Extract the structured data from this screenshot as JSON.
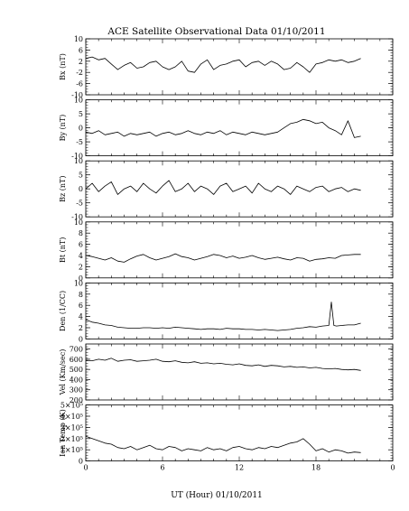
{
  "chart_data": {
    "type": "line",
    "title": "ACE Satellite Observational Data   01/10/2011",
    "xlabel": "UT (Hour)   01/10/2011",
    "x_ticks": [
      "0",
      "6",
      "12",
      "18",
      "0"
    ],
    "x_range": [
      0,
      24
    ],
    "data_end_hour": 21.5,
    "panels": [
      {
        "ylabel": "Bx (nT)",
        "ylim": [
          -10,
          10
        ],
        "yticks": [
          "10",
          "6",
          "2",
          "-2",
          "-6",
          "-10"
        ],
        "ytick_values": [
          10,
          6,
          2,
          -2,
          -6,
          -10
        ],
        "x": [
          0,
          0.5,
          1,
          1.5,
          2,
          2.5,
          3,
          3.5,
          4,
          4.5,
          5,
          5.5,
          6,
          6.5,
          7,
          7.5,
          8,
          8.5,
          9,
          9.5,
          10,
          10.5,
          11,
          11.5,
          12,
          12.5,
          13,
          13.5,
          14,
          14.5,
          15,
          15.5,
          16,
          16.5,
          17,
          17.5,
          18,
          18.5,
          19,
          19.5,
          20,
          20.5,
          21,
          21.5
        ],
        "values": [
          3,
          3.5,
          2.5,
          3,
          1,
          -1,
          0.5,
          1.5,
          -0.5,
          0,
          1.5,
          2,
          0,
          -1,
          0,
          2,
          -1.5,
          -2,
          1,
          2.5,
          -1,
          0.5,
          1,
          2,
          2.5,
          0,
          1.5,
          2,
          0.5,
          2,
          1,
          -1,
          -0.5,
          1.5,
          0,
          -2,
          1,
          1.5,
          2.5,
          2,
          2.5,
          1.5,
          2,
          3
        ]
      },
      {
        "ylabel": "By (nT)",
        "ylim": [
          -10,
          10
        ],
        "yticks": [
          "10",
          "5",
          "0",
          "-5",
          "-10"
        ],
        "ytick_values": [
          10,
          5,
          0,
          -5,
          -10
        ],
        "x": [
          0,
          0.5,
          1,
          1.5,
          2,
          2.5,
          3,
          3.5,
          4,
          4.5,
          5,
          5.5,
          6,
          6.5,
          7,
          7.5,
          8,
          8.5,
          9,
          9.5,
          10,
          10.5,
          11,
          11.5,
          12,
          12.5,
          13,
          13.5,
          14,
          14.5,
          15,
          15.5,
          16,
          16.5,
          17,
          17.5,
          18,
          18.5,
          19,
          19.5,
          20,
          20.5,
          21,
          21.5
        ],
        "values": [
          -1.5,
          -2,
          -1,
          -2.5,
          -2,
          -1.5,
          -3,
          -2,
          -2.5,
          -2,
          -1.5,
          -3,
          -2,
          -1.5,
          -2.5,
          -2,
          -1,
          -2,
          -2.5,
          -1.5,
          -2,
          -1,
          -2.5,
          -1.5,
          -2,
          -2.5,
          -1.5,
          -2,
          -2.5,
          -2,
          -1.5,
          0,
          1.5,
          2,
          3,
          2.5,
          1.5,
          2,
          0,
          -1,
          -2.5,
          2.5,
          -3.5,
          -3
        ]
      },
      {
        "ylabel": "Bz (nT)",
        "ylim": [
          -10,
          10
        ],
        "yticks": [
          "10",
          "5",
          "0",
          "-5",
          "-10"
        ],
        "ytick_values": [
          10,
          5,
          0,
          -5,
          -10
        ],
        "x": [
          0,
          0.5,
          1,
          1.5,
          2,
          2.5,
          3,
          3.5,
          4,
          4.5,
          5,
          5.5,
          6,
          6.5,
          7,
          7.5,
          8,
          8.5,
          9,
          9.5,
          10,
          10.5,
          11,
          11.5,
          12,
          12.5,
          13,
          13.5,
          14,
          14.5,
          15,
          15.5,
          16,
          16.5,
          17,
          17.5,
          18,
          18.5,
          19,
          19.5,
          20,
          20.5,
          21,
          21.5
        ],
        "values": [
          0,
          2,
          -1,
          1,
          2.5,
          -2,
          0,
          1,
          -1,
          2,
          0,
          -1.5,
          1,
          3,
          -1,
          0,
          2,
          -1,
          1,
          0,
          -2,
          1,
          2,
          -1,
          0,
          1,
          -1.5,
          2,
          0,
          -1,
          1,
          0,
          -2,
          1,
          0,
          -1,
          0.5,
          1,
          -1,
          0,
          0.5,
          -1,
          0,
          -0.5
        ]
      },
      {
        "ylabel": "Bt (nT)",
        "ylim": [
          0,
          10
        ],
        "yticks": [
          "10",
          "8",
          "6",
          "4",
          "2",
          "0"
        ],
        "ytick_values": [
          10,
          8,
          6,
          4,
          2,
          0
        ],
        "x": [
          0,
          0.5,
          1,
          1.5,
          2,
          2.5,
          3,
          3.5,
          4,
          4.5,
          5,
          5.5,
          6,
          6.5,
          7,
          7.5,
          8,
          8.5,
          9,
          9.5,
          10,
          10.5,
          11,
          11.5,
          12,
          12.5,
          13,
          13.5,
          14,
          14.5,
          15,
          15.5,
          16,
          16.5,
          17,
          17.5,
          18,
          18.5,
          19,
          19.5,
          20,
          20.5,
          21,
          21.5
        ],
        "values": [
          4,
          3.8,
          3.5,
          3.2,
          3.6,
          3,
          2.8,
          3.4,
          3.9,
          4.2,
          3.6,
          3.2,
          3.5,
          3.8,
          4.3,
          3.8,
          3.6,
          3.2,
          3.5,
          3.8,
          4.2,
          4,
          3.6,
          3.9,
          3.5,
          3.7,
          4,
          3.6,
          3.3,
          3.5,
          3.7,
          3.4,
          3.2,
          3.6,
          3.5,
          3,
          3.3,
          3.4,
          3.6,
          3.5,
          4,
          4.1,
          4.2,
          4.2
        ]
      },
      {
        "ylabel": "Den (1/CC)",
        "ylim": [
          0,
          10
        ],
        "yticks": [
          "10",
          "8",
          "6",
          "4",
          "2",
          "0"
        ],
        "ytick_values": [
          10,
          8,
          6,
          4,
          2,
          0
        ],
        "x": [
          0,
          0.5,
          1,
          1.5,
          2,
          2.5,
          3,
          3.5,
          4,
          4.5,
          5,
          5.5,
          6,
          6.5,
          7,
          7.5,
          8,
          8.5,
          9,
          9.5,
          10,
          10.5,
          11,
          11.5,
          12,
          12.5,
          13,
          13.5,
          14,
          14.5,
          15,
          15.5,
          16,
          16.5,
          17,
          17.5,
          18,
          18.5,
          19,
          19.2,
          19.4,
          19.6,
          20,
          20.5,
          21,
          21.5
        ],
        "values": [
          3.4,
          3,
          2.8,
          2.5,
          2.4,
          2.1,
          2,
          1.9,
          1.9,
          2,
          2,
          1.9,
          2,
          1.9,
          2.1,
          2,
          1.9,
          1.8,
          1.7,
          1.8,
          1.8,
          1.7,
          1.9,
          1.8,
          1.8,
          1.7,
          1.7,
          1.6,
          1.7,
          1.6,
          1.5,
          1.6,
          1.7,
          1.9,
          2,
          2.2,
          2.1,
          2.3,
          2.4,
          6.6,
          2.4,
          2.3,
          2.4,
          2.5,
          2.5,
          2.8
        ]
      },
      {
        "ylabel": "Vel (Km/sec)",
        "ylim": [
          200,
          750
        ],
        "yticks": [
          "700",
          "600",
          "500",
          "400",
          "300",
          "200"
        ],
        "ytick_values": [
          700,
          600,
          500,
          400,
          300,
          200
        ],
        "x": [
          0,
          0.5,
          1,
          1.5,
          2,
          2.5,
          3,
          3.5,
          4,
          4.5,
          5,
          5.5,
          6,
          6.5,
          7,
          7.5,
          8,
          8.5,
          9,
          9.5,
          10,
          10.5,
          11,
          11.5,
          12,
          12.5,
          13,
          13.5,
          14,
          14.5,
          15,
          15.5,
          16,
          16.5,
          17,
          17.5,
          18,
          18.5,
          19,
          19.5,
          20,
          20.5,
          21,
          21.5
        ],
        "values": [
          590,
          585,
          600,
          590,
          610,
          580,
          590,
          595,
          580,
          585,
          590,
          600,
          580,
          575,
          585,
          570,
          565,
          575,
          560,
          565,
          555,
          560,
          550,
          545,
          555,
          540,
          535,
          545,
          530,
          540,
          535,
          525,
          530,
          520,
          525,
          515,
          520,
          510,
          505,
          510,
          500,
          495,
          500,
          490
        ]
      },
      {
        "ylabel": "Ion Temp (K)",
        "ylim": [
          0,
          500000
        ],
        "yticks": [
          "5×10⁵",
          "4×10⁵",
          "3×10⁵",
          "2×10⁵",
          "1×10⁵",
          "0"
        ],
        "ytick_values": [
          500000,
          400000,
          300000,
          200000,
          100000,
          0
        ],
        "x": [
          0,
          0.5,
          1,
          1.5,
          2,
          2.5,
          3,
          3.5,
          4,
          4.5,
          5,
          5.5,
          6,
          6.5,
          7,
          7.5,
          8,
          8.5,
          9,
          9.5,
          10,
          10.5,
          11,
          11.5,
          12,
          12.5,
          13,
          13.5,
          14,
          14.5,
          15,
          15.5,
          16,
          16.5,
          17,
          17.5,
          18,
          18.5,
          19,
          19.5,
          20,
          20.5,
          21,
          21.5
        ],
        "values": [
          220000,
          200000,
          180000,
          160000,
          150000,
          120000,
          110000,
          130000,
          100000,
          120000,
          140000,
          110000,
          100000,
          130000,
          120000,
          90000,
          110000,
          100000,
          90000,
          120000,
          100000,
          110000,
          90000,
          120000,
          130000,
          110000,
          100000,
          120000,
          110000,
          130000,
          120000,
          140000,
          160000,
          170000,
          200000,
          150000,
          90000,
          110000,
          80000,
          100000,
          90000,
          70000,
          80000,
          75000
        ]
      }
    ]
  }
}
